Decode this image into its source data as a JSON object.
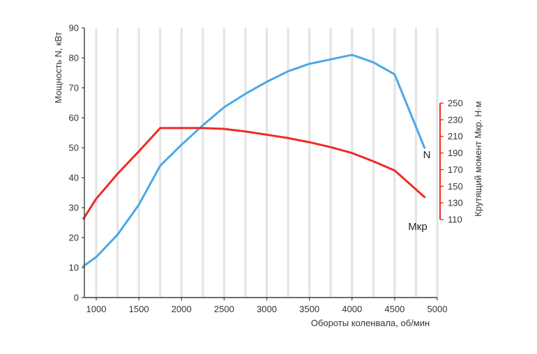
{
  "chart_data": {
    "type": "line",
    "xlabel": "Обороты коленвала, об/мин",
    "ylabel": "Мощность N, кВт",
    "y2label": "Крутящий момент Мкр. Н·м",
    "xlim": [
      1000,
      5000
    ],
    "ylim": [
      0,
      90
    ],
    "y2lim": [
      110,
      250
    ],
    "x_ticks": [
      "1000",
      "1500",
      "2000",
      "2500",
      "3000",
      "3500",
      "4000",
      "4500",
      "5000"
    ],
    "y_ticks": [
      "0",
      "10",
      "20",
      "30",
      "40",
      "50",
      "60",
      "70",
      "80",
      "90"
    ],
    "y2_ticks": [
      "110",
      "130",
      "150",
      "170",
      "190",
      "210",
      "230",
      "250"
    ],
    "grid": "vertical",
    "series": [
      {
        "name": "N",
        "axis": "left",
        "color": "#4aa8e8",
        "x": [
          850,
          1000,
          1250,
          1500,
          1750,
          2000,
          2250,
          2500,
          2750,
          3000,
          3250,
          3500,
          3750,
          4000,
          4250,
          4500,
          4850
        ],
        "y": [
          10.5,
          13.5,
          21,
          31,
          44,
          51,
          57.5,
          63.5,
          68,
          72,
          75.5,
          78,
          79.5,
          81,
          78.5,
          74.5,
          50
        ]
      },
      {
        "name": "Мкр",
        "axis": "right",
        "color": "#ee2b24",
        "x": [
          850,
          1000,
          1250,
          1500,
          1750,
          2000,
          2250,
          2500,
          2750,
          3000,
          3250,
          3500,
          3750,
          4000,
          4250,
          4500,
          4850
        ],
        "y": [
          111,
          135,
          165,
          192,
          220,
          220,
          220,
          219,
          216,
          212,
          208,
          203,
          197,
          190,
          180,
          169,
          137
        ]
      }
    ]
  }
}
